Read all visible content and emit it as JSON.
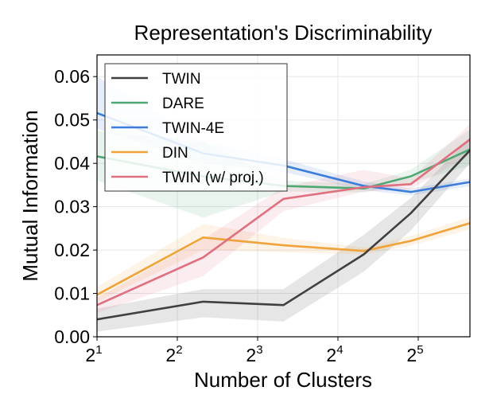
{
  "chart_data": {
    "type": "line",
    "title": "Representation's Discriminability",
    "xlabel": "Number of Clusters",
    "ylabel": "Mutual Information",
    "x_scale": "log2",
    "xlim": [
      2,
      50
    ],
    "ylim": [
      0,
      0.065
    ],
    "xticks": [
      {
        "value": 2,
        "base": "2",
        "exp": "1"
      },
      {
        "value": 4,
        "base": "2",
        "exp": "2"
      },
      {
        "value": 8,
        "base": "2",
        "exp": "3"
      },
      {
        "value": 16,
        "base": "2",
        "exp": "4"
      },
      {
        "value": 32,
        "base": "2",
        "exp": "5"
      }
    ],
    "yticks": [
      {
        "value": 0,
        "label": "0.00"
      },
      {
        "value": 0.01,
        "label": "0.01"
      },
      {
        "value": 0.02,
        "label": "0.02"
      },
      {
        "value": 0.03,
        "label": "0.03"
      },
      {
        "value": 0.04,
        "label": "0.04"
      },
      {
        "value": 0.05,
        "label": "0.05"
      },
      {
        "value": 0.06,
        "label": "0.06"
      }
    ],
    "grid": true,
    "legend_position": "top-left",
    "x": [
      2,
      5,
      10,
      20,
      30,
      50
    ],
    "series": [
      {
        "name": "TWIN",
        "color": "#404040",
        "values": [
          0.004,
          0.0081,
          0.0073,
          0.019,
          0.0285,
          0.043
        ],
        "lower": [
          0.0012,
          0.0045,
          0.0035,
          0.015,
          0.0245,
          0.04
        ],
        "upper": [
          0.0065,
          0.011,
          0.011,
          0.0235,
          0.032,
          0.046
        ]
      },
      {
        "name": "DARE",
        "color": "#4ea874",
        "values": [
          0.0416,
          0.037,
          0.0348,
          0.0342,
          0.037,
          0.0432
        ],
        "lower": [
          0.036,
          0.0275,
          0.0335,
          0.0333,
          0.0355,
          0.0395
        ],
        "upper": [
          0.0475,
          0.045,
          0.036,
          0.0352,
          0.0385,
          0.0478
        ]
      },
      {
        "name": "TWIN-4E",
        "color": "#3b7dd8",
        "values": [
          0.0516,
          0.0423,
          0.0395,
          0.0348,
          0.0334,
          0.0357
        ],
        "lower": [
          0.048,
          0.04,
          0.038,
          0.0338,
          0.0326,
          0.0347
        ],
        "upper": [
          0.06,
          0.045,
          0.041,
          0.0358,
          0.0342,
          0.0365
        ]
      },
      {
        "name": "DIN",
        "color": "#f0a33a",
        "values": [
          0.0097,
          0.0229,
          0.0211,
          0.0198,
          0.0221,
          0.0262
        ],
        "lower": [
          0.008,
          0.02,
          0.0195,
          0.019,
          0.021,
          0.0248
        ],
        "upper": [
          0.0115,
          0.026,
          0.0228,
          0.0206,
          0.0232,
          0.0276
        ]
      },
      {
        "name": "TWIN (w/ proj.)",
        "color": "#e07080",
        "values": [
          0.0073,
          0.0183,
          0.0318,
          0.0345,
          0.0352,
          0.0455
        ],
        "lower": [
          0.0055,
          0.014,
          0.029,
          0.0335,
          0.034,
          0.042
        ],
        "upper": [
          0.009,
          0.0225,
          0.0345,
          0.0385,
          0.0365,
          0.049
        ]
      }
    ]
  }
}
